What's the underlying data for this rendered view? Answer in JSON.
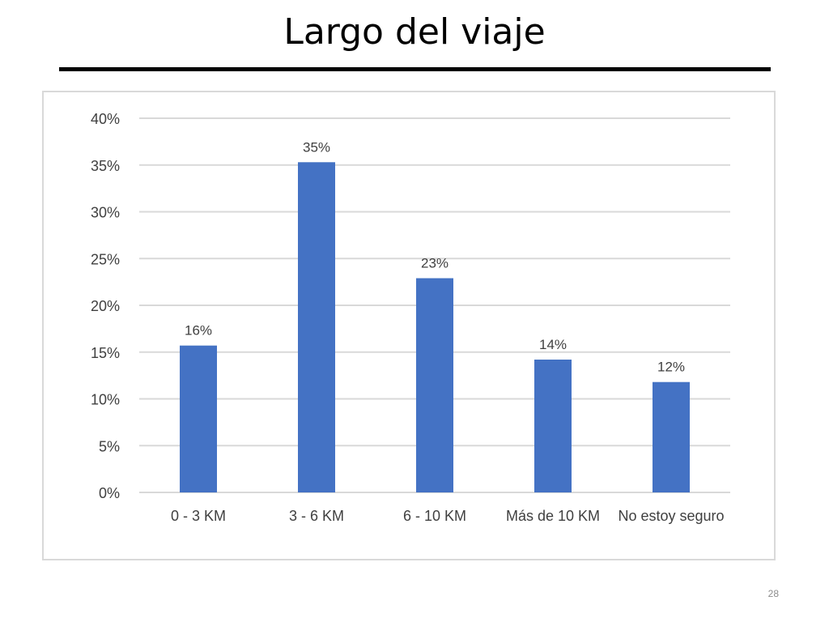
{
  "slide": {
    "title": "Largo del viaje",
    "page_number": "28"
  },
  "chart_data": {
    "type": "bar",
    "title": "",
    "xlabel": "",
    "ylabel": "",
    "categories": [
      "0 - 3 KM",
      "3 - 6 KM",
      "6  - 10 KM",
      "Más de 10 KM",
      "No estoy seguro"
    ],
    "values": [
      15.7,
      35.3,
      22.9,
      14.2,
      11.8
    ],
    "data_labels": [
      "16%",
      "35%",
      "23%",
      "14%",
      "12%"
    ],
    "ylim": [
      0,
      40
    ],
    "yticks": [
      0,
      5,
      10,
      15,
      20,
      25,
      30,
      35,
      40
    ],
    "ytick_labels": [
      "0%",
      "5%",
      "10%",
      "15%",
      "20%",
      "25%",
      "30%",
      "35%",
      "40%"
    ],
    "grid": true,
    "legend": "none",
    "colors": {
      "bar": "#4472c4",
      "grid": "#d9d9d9",
      "text": "#404040"
    }
  }
}
